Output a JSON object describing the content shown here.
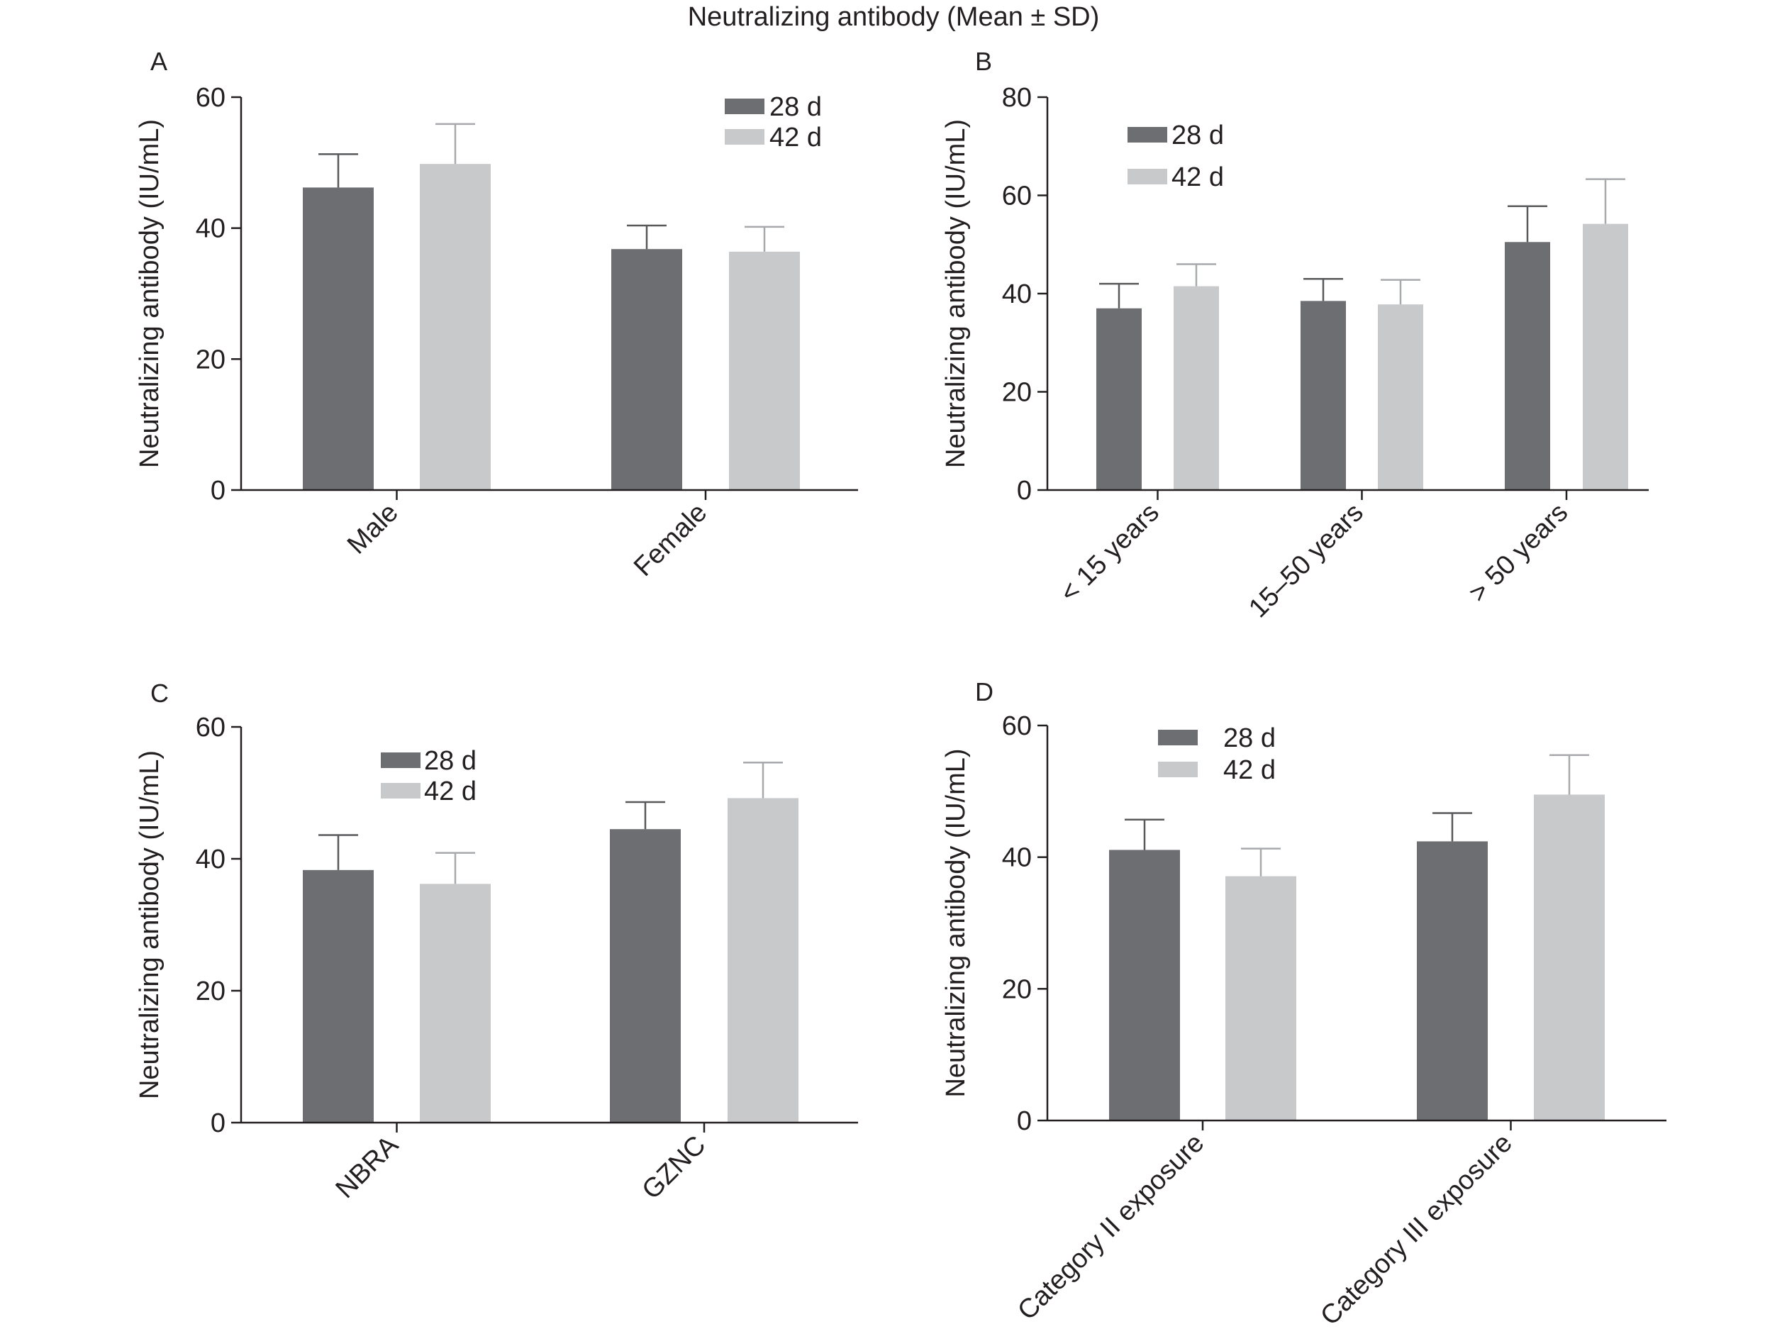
{
  "figure_title": "Neutralizing antibody (Mean ± SD)",
  "colors": {
    "d28": "#6d6e71",
    "d42": "#c8c9cb",
    "axis": "#231f20"
  },
  "chart_data": [
    {
      "panel": "A",
      "type": "bar",
      "ylabel": "Neutralizing antibody (IU/mL)",
      "ylim": [
        0,
        60
      ],
      "yticks": [
        "0",
        "20",
        "40",
        "60"
      ],
      "categories": [
        "Male",
        "Female"
      ],
      "legend_position": "top-right",
      "series": [
        {
          "name": "28 d",
          "values": [
            46.2,
            36.8
          ],
          "sd": [
            5.1,
            3.6
          ]
        },
        {
          "name": "42 d",
          "values": [
            49.8,
            36.4
          ],
          "sd": [
            6.1,
            3.8
          ]
        }
      ]
    },
    {
      "panel": "B",
      "type": "bar",
      "ylabel": "Neutralizing antibody (IU/mL)",
      "ylim": [
        0,
        80
      ],
      "yticks": [
        "0",
        "20",
        "40",
        "60",
        "80"
      ],
      "categories": [
        "< 15 years",
        "15–50 years",
        "> 50 years"
      ],
      "legend_position": "top-left",
      "series": [
        {
          "name": "28 d",
          "values": [
            37.0,
            38.5,
            50.5
          ],
          "sd": [
            5.0,
            4.5,
            7.3
          ]
        },
        {
          "name": "42 d",
          "values": [
            41.5,
            37.8,
            54.2
          ],
          "sd": [
            4.5,
            5.0,
            9.1
          ]
        }
      ]
    },
    {
      "panel": "C",
      "type": "bar",
      "ylabel": "Neutralizing antibody (IU/mL)",
      "ylim": [
        0,
        60
      ],
      "yticks": [
        "0",
        "20",
        "40",
        "60"
      ],
      "categories": [
        "NBRA",
        "GZNC"
      ],
      "legend_position": "top-center",
      "series": [
        {
          "name": "28 d",
          "values": [
            38.3,
            44.5
          ],
          "sd": [
            5.3,
            4.1
          ]
        },
        {
          "name": "42 d",
          "values": [
            36.2,
            49.2
          ],
          "sd": [
            4.7,
            5.4
          ]
        }
      ]
    },
    {
      "panel": "D",
      "type": "bar",
      "ylabel": "Neutralizing antibody (IU/mL)",
      "ylim": [
        0,
        60
      ],
      "yticks": [
        "0",
        "20",
        "40",
        "60"
      ],
      "categories": [
        "Category II exposure",
        "Category III exposure"
      ],
      "legend_position": "top-left",
      "series": [
        {
          "name": "28 d",
          "values": [
            41.1,
            42.4
          ],
          "sd": [
            4.6,
            4.3
          ]
        },
        {
          "name": "42 d",
          "values": [
            37.1,
            49.5
          ],
          "sd": [
            4.2,
            6.0
          ]
        }
      ]
    }
  ]
}
